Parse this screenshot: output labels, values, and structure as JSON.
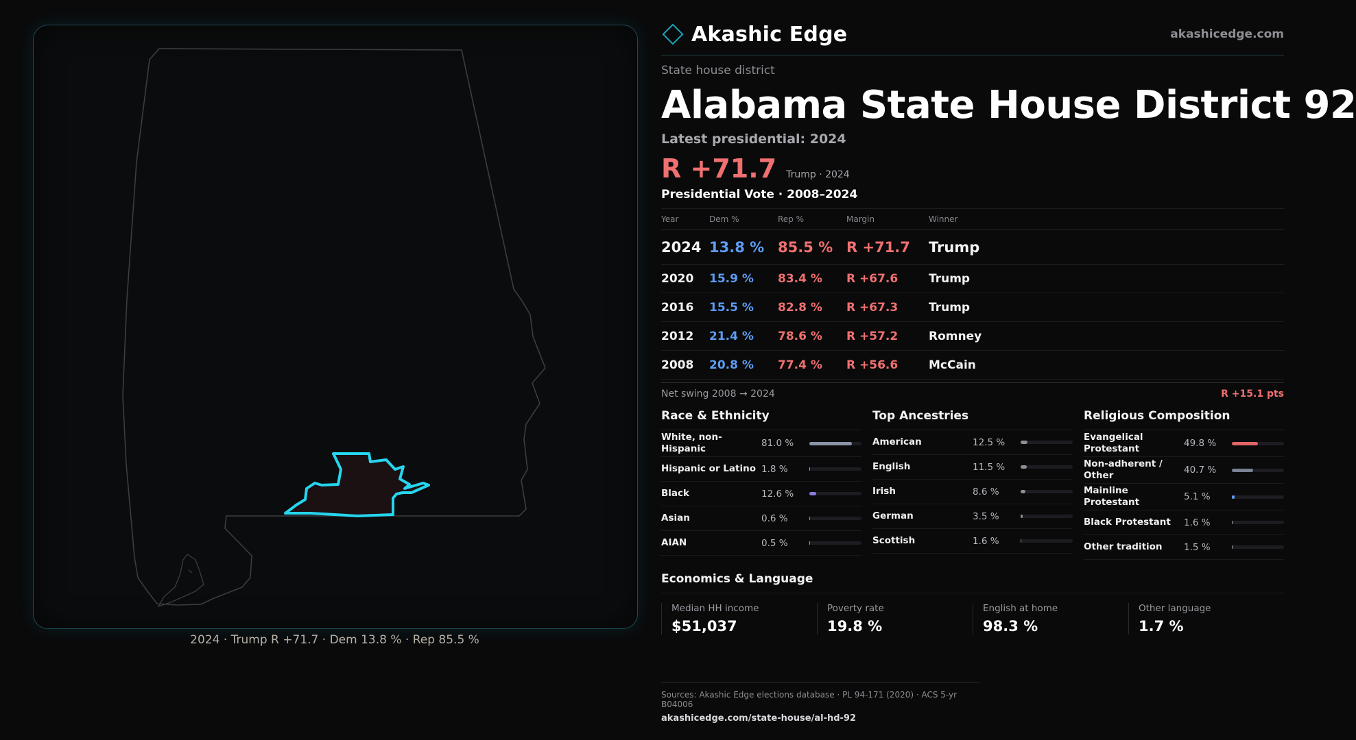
{
  "brand": {
    "name": "Akashic Edge",
    "site": "akashicedge.com"
  },
  "header": {
    "kicker": "State house district",
    "title": "Alabama State House District 92",
    "latest_label": "Latest presidential: 2024",
    "margin": "R +71.7",
    "margin_caption": "Trump · 2024"
  },
  "map": {
    "caption": "2024 · Trump R +71.7 · Dem 13.8 % · Rep 85.5 %"
  },
  "presidential": {
    "title": "Presidential Vote · 2008–2024",
    "headers": {
      "year": "Year",
      "dem": "Dem %",
      "rep": "Rep %",
      "margin": "Margin",
      "winner": "Winner"
    },
    "rows": [
      {
        "year": "2024",
        "dem": "13.8 %",
        "rep": "85.5 %",
        "margin": "R +71.7",
        "winner": "Trump"
      },
      {
        "year": "2020",
        "dem": "15.9 %",
        "rep": "83.4 %",
        "margin": "R +67.6",
        "winner": "Trump"
      },
      {
        "year": "2016",
        "dem": "15.5 %",
        "rep": "82.8 %",
        "margin": "R +67.3",
        "winner": "Trump"
      },
      {
        "year": "2012",
        "dem": "21.4 %",
        "rep": "78.6 %",
        "margin": "R +57.2",
        "winner": "Romney"
      },
      {
        "year": "2008",
        "dem": "20.8 %",
        "rep": "77.4 %",
        "margin": "R +56.6",
        "winner": "McCain"
      }
    ],
    "swing_label": "Net swing 2008 → 2024",
    "swing_value": "R +15.1 pts"
  },
  "race": {
    "title": "Race & Ethnicity",
    "items": [
      {
        "label": "White, non-Hispanic",
        "value": "81.0 %",
        "pct": 81.0,
        "color": "#8a93a8"
      },
      {
        "label": "Hispanic or Latino",
        "value": "1.8 %",
        "pct": 1.8,
        "color": "#c9a25a"
      },
      {
        "label": "Black",
        "value": "12.6 %",
        "pct": 12.6,
        "color": "#8b7be0"
      },
      {
        "label": "Asian",
        "value": "0.6 %",
        "pct": 0.6,
        "color": "#5fb0a8"
      },
      {
        "label": "AIAN",
        "value": "0.5 %",
        "pct": 0.5,
        "color": "#a0a0a0"
      }
    ]
  },
  "ancestry": {
    "title": "Top Ancestries",
    "items": [
      {
        "label": "American",
        "value": "12.5 %",
        "pct": 12.5,
        "color": "#8a8f98"
      },
      {
        "label": "English",
        "value": "11.5 %",
        "pct": 11.5,
        "color": "#8a8f98"
      },
      {
        "label": "Irish",
        "value": "8.6 %",
        "pct": 8.6,
        "color": "#8a8f98"
      },
      {
        "label": "German",
        "value": "3.5 %",
        "pct": 3.5,
        "color": "#8a8f98"
      },
      {
        "label": "Scottish",
        "value": "1.6 %",
        "pct": 1.6,
        "color": "#8a8f98"
      }
    ]
  },
  "religion": {
    "title": "Religious Composition",
    "items": [
      {
        "label": "Evangelical Protestant",
        "value": "49.8 %",
        "pct": 49.8,
        "color": "#e06666"
      },
      {
        "label": "Non-adherent / Other",
        "value": "40.7 %",
        "pct": 40.7,
        "color": "#7a8294"
      },
      {
        "label": "Mainline Protestant",
        "value": "5.1 %",
        "pct": 5.1,
        "color": "#5d9cf2"
      },
      {
        "label": "Black Protestant",
        "value": "1.6 %",
        "pct": 1.6,
        "color": "#a0a0a0"
      },
      {
        "label": "Other tradition",
        "value": "1.5 %",
        "pct": 1.5,
        "color": "#a0a0a0"
      }
    ]
  },
  "economics": {
    "title": "Economics & Language",
    "items": [
      {
        "label": "Median HH income",
        "value": "$51,037"
      },
      {
        "label": "Poverty rate",
        "value": "19.8 %"
      },
      {
        "label": "English at home",
        "value": "98.3 %"
      },
      {
        "label": "Other language",
        "value": "1.7 %"
      }
    ]
  },
  "sources": {
    "text": "Sources: Akashic Edge elections database · PL 94-171 (2020) · ACS 5-yr B04006",
    "url": "akashicedge.com/state-house/al-hd-92"
  }
}
